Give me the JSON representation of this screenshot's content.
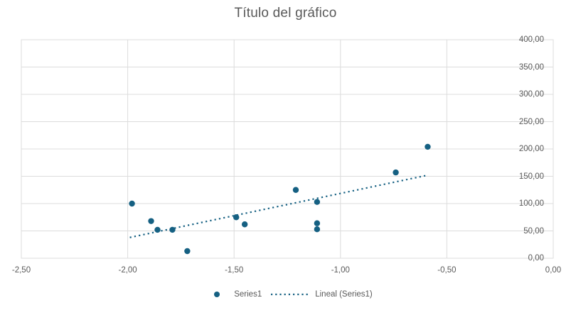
{
  "chart_data": {
    "type": "scatter",
    "title": "Título del gráfico",
    "xlim": [
      -2.5,
      0
    ],
    "ylim": [
      0,
      400
    ],
    "grid": true,
    "series": [
      {
        "name": "Series1",
        "points": [
          {
            "x": -1.98,
            "y": 100
          },
          {
            "x": -1.89,
            "y": 68
          },
          {
            "x": -1.86,
            "y": 52
          },
          {
            "x": -1.79,
            "y": 52
          },
          {
            "x": -1.72,
            "y": 13
          },
          {
            "x": -1.49,
            "y": 75
          },
          {
            "x": -1.45,
            "y": 62
          },
          {
            "x": -1.21,
            "y": 125
          },
          {
            "x": -1.11,
            "y": 103
          },
          {
            "x": -1.11,
            "y": 64
          },
          {
            "x": -1.11,
            "y": 53
          },
          {
            "x": -0.74,
            "y": 157
          },
          {
            "x": -0.59,
            "y": 204
          }
        ]
      }
    ],
    "trendline": {
      "name": "Lineal (Series1)",
      "style": "dotted",
      "x1": -1.99,
      "y1": 38,
      "x2": -0.59,
      "y2": 152
    },
    "x_ticks": [
      {
        "value": -2.5,
        "label": "-2,50"
      },
      {
        "value": -2.0,
        "label": "-2,00"
      },
      {
        "value": -1.5,
        "label": "-1,50"
      },
      {
        "value": -1.0,
        "label": "-1,00"
      },
      {
        "value": -0.5,
        "label": "-0,50"
      },
      {
        "value": 0.0,
        "label": "0,00"
      }
    ],
    "y_ticks": [
      {
        "value": 0,
        "label": "0,00"
      },
      {
        "value": 50,
        "label": "50,00"
      },
      {
        "value": 100,
        "label": "100,00"
      },
      {
        "value": 150,
        "label": "150,00"
      },
      {
        "value": 200,
        "label": "200,00"
      },
      {
        "value": 250,
        "label": "250,00"
      },
      {
        "value": 300,
        "label": "300,00"
      },
      {
        "value": 350,
        "label": "350,00"
      },
      {
        "value": 400,
        "label": "400,00"
      }
    ],
    "legend": {
      "position": "bottom",
      "series_label": "Series1",
      "trendline_label": "Lineal (Series1)"
    },
    "colors": {
      "series": "#156082",
      "grid": "#DCDCDC",
      "text": "#595959",
      "background": "#FFFFFF"
    }
  }
}
